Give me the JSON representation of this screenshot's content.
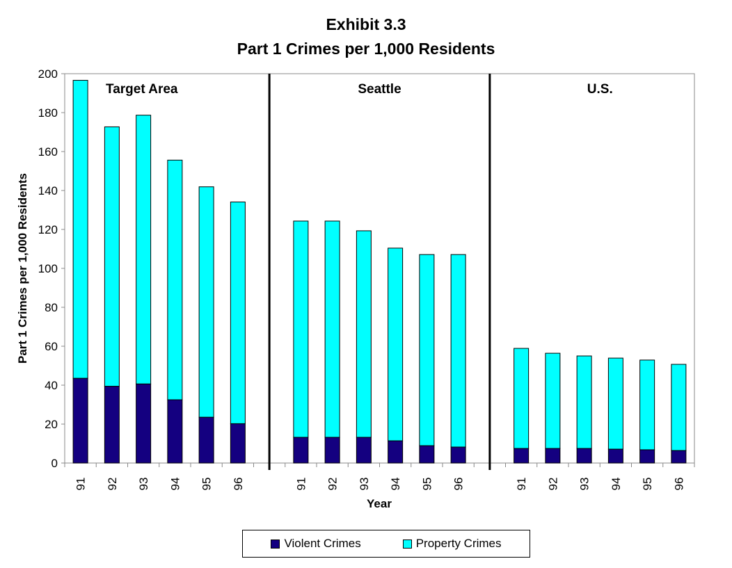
{
  "chart_data": {
    "type": "bar",
    "stacked": true,
    "title": "Exhibit 3.3",
    "subtitle": "Part 1 Crimes per 1,000 Residents",
    "xlabel": "Year",
    "ylabel": "Part 1 Crimes per 1,000 Residents",
    "ylim": [
      0,
      200
    ],
    "yticks": [
      0,
      20,
      40,
      60,
      80,
      100,
      120,
      140,
      160,
      180,
      200
    ],
    "grid": false,
    "legend": "bottom",
    "groups": [
      {
        "name": "Target Area",
        "categories": [
          "91",
          "92",
          "93",
          "94",
          "95",
          "96"
        ],
        "violent": [
          43.5,
          39.4,
          40.6,
          32.5,
          23.5,
          20.2
        ],
        "total": [
          196.6,
          172.7,
          178.7,
          155.6,
          141.9,
          134.1
        ]
      },
      {
        "name": "Seattle",
        "categories": [
          "91",
          "92",
          "93",
          "94",
          "95",
          "96"
        ],
        "violent": [
          13.2,
          13.2,
          13.2,
          11.4,
          8.9,
          8.2
        ],
        "total": [
          124.3,
          124.3,
          119.3,
          110.4,
          107.1,
          107.1
        ]
      },
      {
        "name": "U.S.",
        "categories": [
          "91",
          "92",
          "93",
          "94",
          "95",
          "96"
        ],
        "violent": [
          7.5,
          7.5,
          7.5,
          7.1,
          6.8,
          6.4
        ],
        "total": [
          58.9,
          56.4,
          55.0,
          53.9,
          52.9,
          50.7
        ]
      }
    ],
    "series": [
      {
        "name": "Violent Crimes",
        "color": "#140080"
      },
      {
        "name": "Property Crimes",
        "color": "#00ffff"
      }
    ]
  }
}
